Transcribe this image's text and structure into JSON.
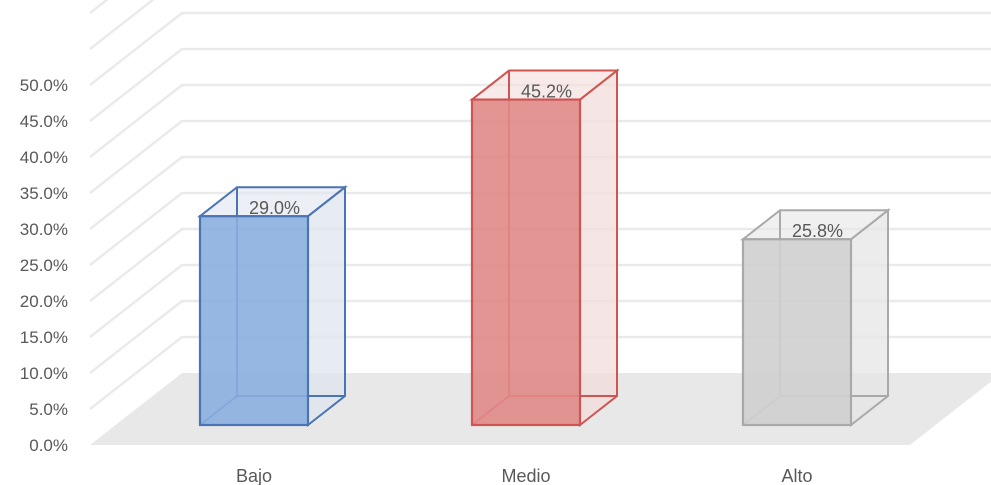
{
  "chart_data": {
    "type": "bar",
    "categories": [
      "Bajo",
      "Medio",
      "Alto"
    ],
    "values": [
      29.0,
      45.2,
      25.8
    ],
    "value_format": "percent_1dp",
    "data_labels": [
      "29.0%",
      "45.2%",
      "25.8%"
    ],
    "title": "",
    "xlabel": "",
    "ylabel": "",
    "ylim": [
      0,
      50
    ],
    "yticks": [
      "0.0%",
      "5.0%",
      "10.0%",
      "15.0%",
      "20.0%",
      "25.0%",
      "30.0%",
      "35.0%",
      "40.0%",
      "45.0%",
      "50.0%"
    ],
    "grid": true,
    "legend": "none",
    "style": "3d-column",
    "colors": {
      "Bajo": {
        "fill": "#8aafdf",
        "stroke": "#4a74b4",
        "side": "#dfe5ee"
      },
      "Medio": {
        "fill": "#e08a88",
        "stroke": "#cf5552",
        "side": "#f1dcdb"
      },
      "Alto": {
        "fill": "#cfcfcf",
        "stroke": "#a9a9a9",
        "side": "#e6e6e6"
      },
      "grid": "#eaeaea",
      "floor": "#e8e8e8",
      "text": "#595959"
    }
  }
}
